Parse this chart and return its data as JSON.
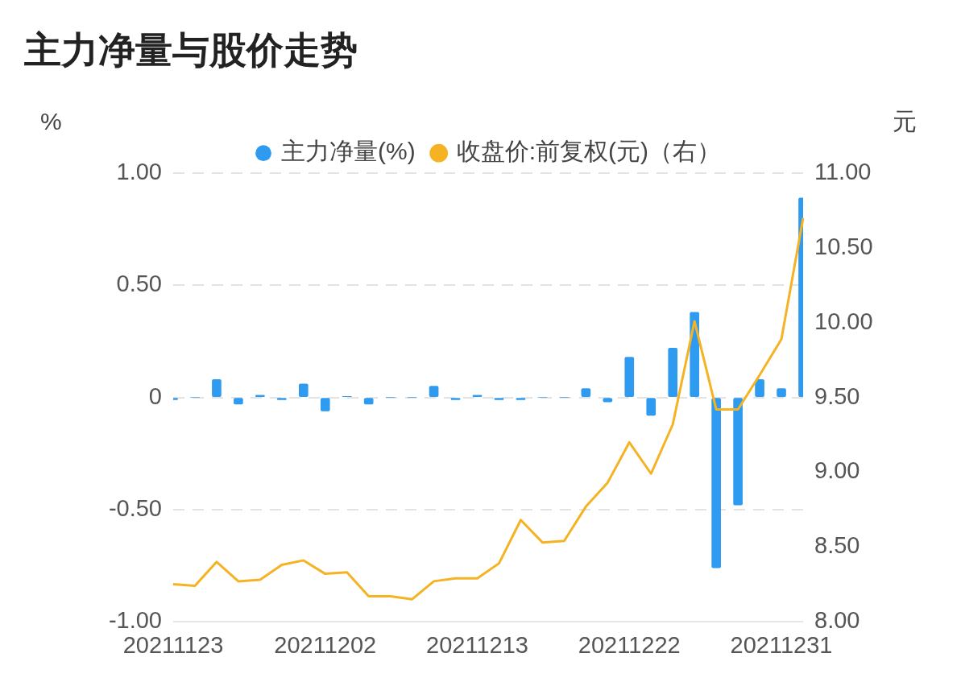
{
  "chart_data": {
    "type": "bar",
    "title": "主力净量与股价走势",
    "categories": [
      "20211123",
      null,
      null,
      null,
      null,
      null,
      null,
      "20211202",
      null,
      null,
      null,
      null,
      null,
      null,
      "20211213",
      null,
      null,
      null,
      null,
      null,
      null,
      "20211222",
      null,
      null,
      null,
      null,
      null,
      null,
      "20211231",
      null
    ],
    "series": [
      {
        "name": "主力净量(%)",
        "color": "#2f9bf0",
        "values": [
          -0.01,
          0,
          0.08,
          -0.03,
          0.01,
          -0.01,
          0.06,
          -0.06,
          0.005,
          -0.03,
          0,
          0,
          0.05,
          -0.01,
          0.01,
          -0.01,
          -0.01,
          0,
          0,
          0.04,
          -0.02,
          0.18,
          -0.08,
          0.22,
          0.38,
          -0.76,
          -0.48,
          0.08,
          0.04,
          0.89
        ]
      },
      {
        "name": "收盘价:前复权(元)（右）",
        "type": "line",
        "axis": "y2",
        "color": "#f5b324",
        "values": [
          8.25,
          8.24,
          8.4,
          8.27,
          8.28,
          8.38,
          8.41,
          8.32,
          8.33,
          8.17,
          8.17,
          8.15,
          8.27,
          8.29,
          8.29,
          8.39,
          8.68,
          8.53,
          8.54,
          8.77,
          8.93,
          9.2,
          8.99,
          9.32,
          10.01,
          9.42,
          9.42,
          9.65,
          9.89,
          10.7
        ]
      }
    ],
    "ylabel": "%",
    "y2label": "元",
    "ylim": [
      -1,
      1
    ],
    "yticks": [
      {
        "value": -1,
        "label": "-1.00"
      },
      {
        "value": -0.5,
        "label": "-0.50"
      },
      0,
      {
        "value": 0.5,
        "label": "0.50"
      },
      {
        "value": 1,
        "label": "1.00"
      }
    ],
    "y2lim": [
      8,
      11
    ],
    "y2ticks": [
      {
        "value": 8,
        "label": "8.00"
      },
      {
        "value": 8.5,
        "label": "8.50"
      },
      {
        "value": 9,
        "label": "9.00"
      },
      {
        "value": 9.5,
        "label": "9.50"
      },
      {
        "value": 10,
        "label": "10.00"
      },
      {
        "value": 10.5,
        "label": "10.50"
      },
      {
        "value": 11,
        "label": "11.00"
      }
    ],
    "grid": "y",
    "legend": "top",
    "marker": "none",
    "line_style": "solid"
  }
}
